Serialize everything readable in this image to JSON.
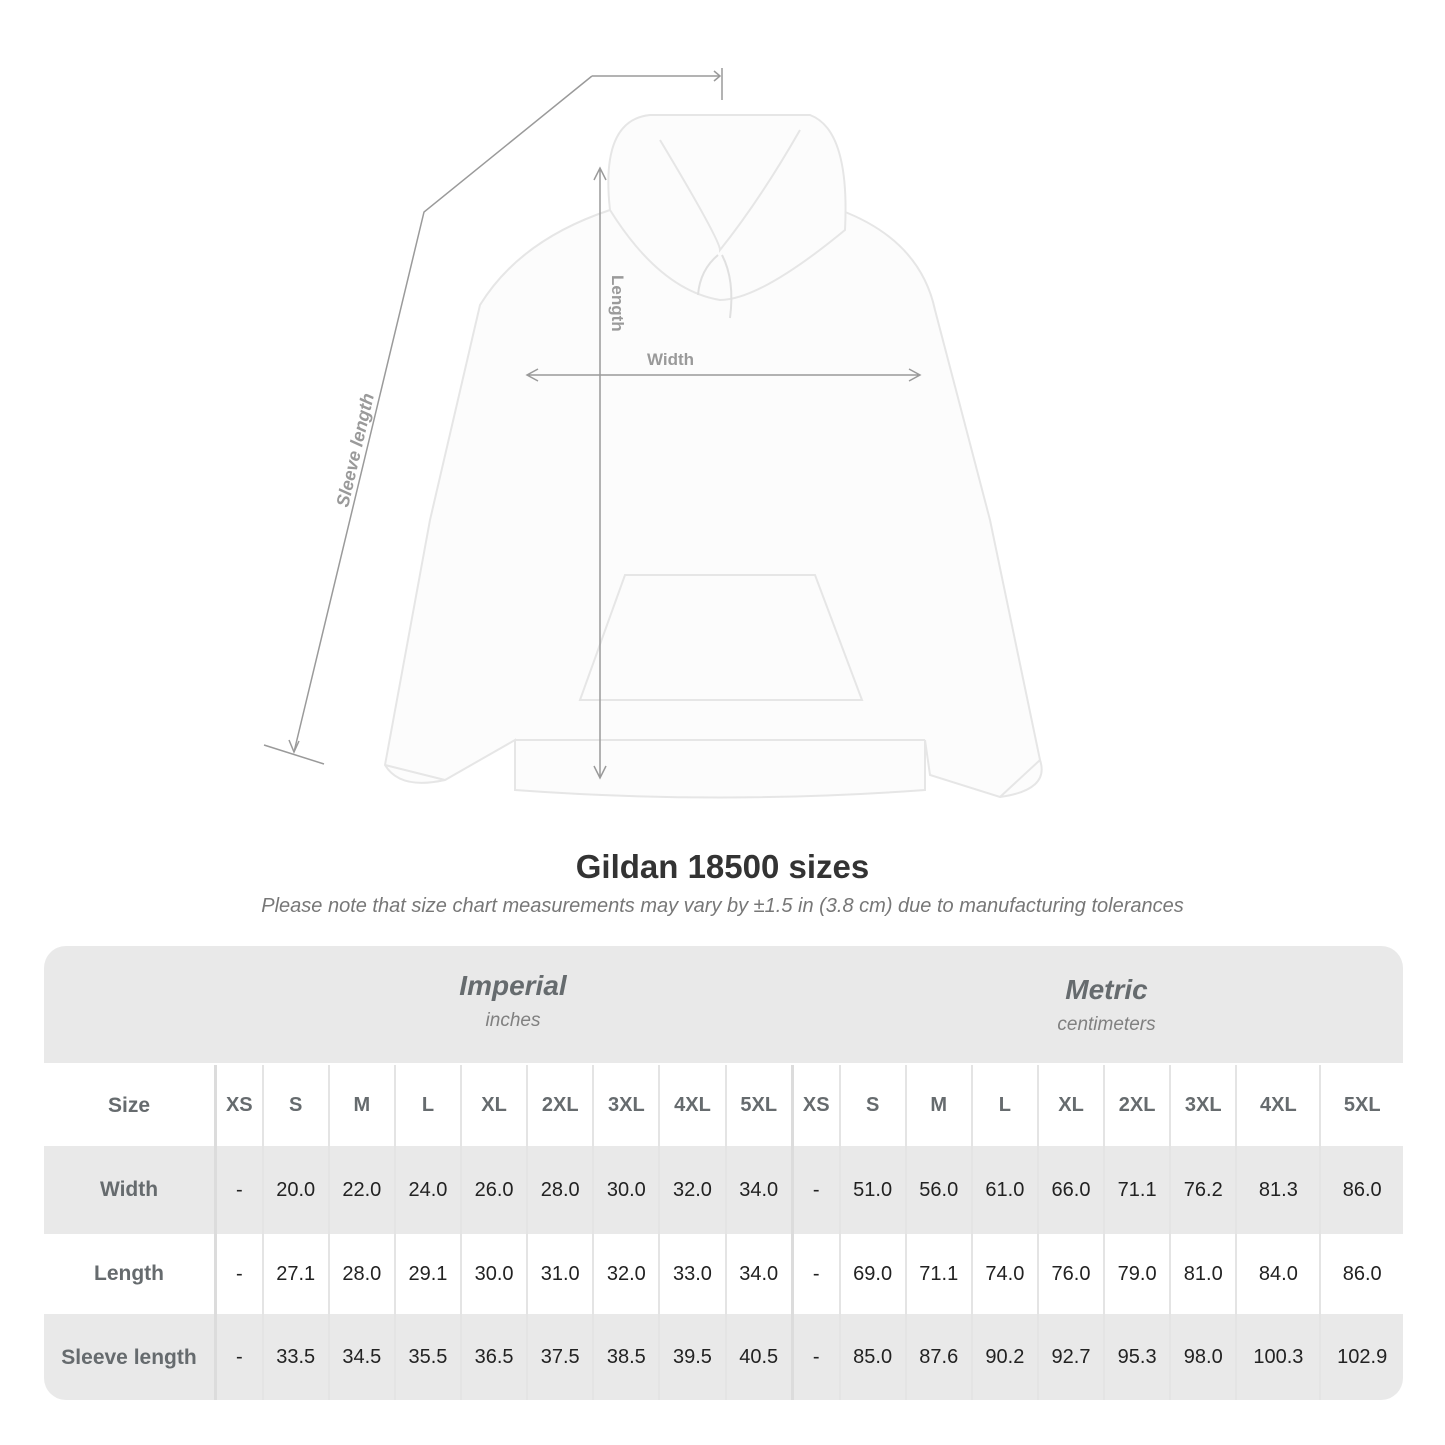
{
  "illustration": {
    "labels": {
      "sleeve": "Sleeve length",
      "length": "Length",
      "width": "Width"
    }
  },
  "title": "Gildan 18500 sizes",
  "subtitle": "Please note that size chart measurements may vary by ±1.5 in (3.8 cm) due to manufacturing tolerances",
  "imperial": {
    "name": "Imperial",
    "unit": "inches"
  },
  "metric": {
    "name": "Metric",
    "unit": "centimeters"
  },
  "table": {
    "size_label": "Size",
    "sizes": [
      "XS",
      "S",
      "M",
      "L",
      "XL",
      "2XL",
      "3XL",
      "4XL",
      "5XL"
    ],
    "rows": [
      {
        "label": "Width",
        "imperial": [
          "-",
          "20.0",
          "22.0",
          "24.0",
          "26.0",
          "28.0",
          "30.0",
          "32.0",
          "34.0"
        ],
        "metric": [
          "-",
          "51.0",
          "56.0",
          "61.0",
          "66.0",
          "71.1",
          "76.2",
          "81.3",
          "86.0"
        ]
      },
      {
        "label": "Length",
        "imperial": [
          "-",
          "27.1",
          "28.0",
          "29.1",
          "30.0",
          "31.0",
          "32.0",
          "33.0",
          "34.0"
        ],
        "metric": [
          "-",
          "69.0",
          "71.1",
          "74.0",
          "76.0",
          "79.0",
          "81.0",
          "84.0",
          "86.0"
        ]
      },
      {
        "label": "Sleeve length",
        "imperial": [
          "-",
          "33.5",
          "34.5",
          "35.5",
          "36.5",
          "37.5",
          "38.5",
          "39.5",
          "40.5"
        ],
        "metric": [
          "-",
          "85.0",
          "87.6",
          "90.2",
          "92.7",
          "95.3",
          "98.0",
          "100.3",
          "102.9"
        ]
      }
    ]
  }
}
